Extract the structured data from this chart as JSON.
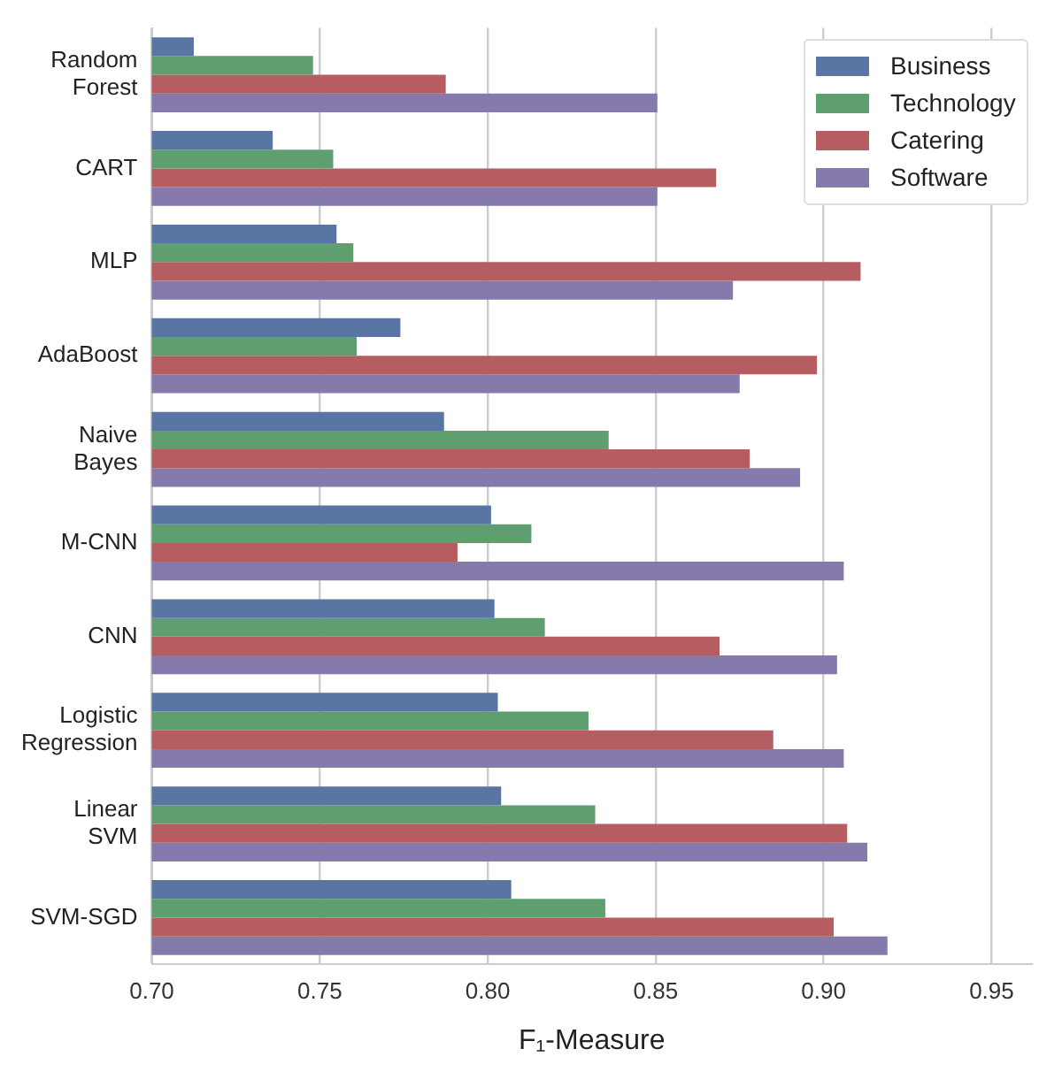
{
  "chart_data": {
    "type": "bar",
    "orientation": "horizontal",
    "xlabel": "F₁-Measure",
    "categories": [
      "Random Forest",
      "CART",
      "MLP",
      "AdaBoost",
      "Naive Bayes",
      "M-CNN",
      "CNN",
      "Logistic Regression",
      "Linear SVM",
      "SVM-SGD"
    ],
    "series": [
      {
        "name": "Business",
        "color": "#5875a4",
        "values": [
          0.7125,
          0.736,
          0.755,
          0.774,
          0.787,
          0.801,
          0.802,
          0.803,
          0.804,
          0.807
        ]
      },
      {
        "name": "Technology",
        "color": "#5f9e6e",
        "values": [
          0.748,
          0.754,
          0.76,
          0.761,
          0.836,
          0.813,
          0.817,
          0.83,
          0.832,
          0.835
        ]
      },
      {
        "name": "Catering",
        "color": "#b55d60",
        "values": [
          0.7875,
          0.868,
          0.911,
          0.898,
          0.878,
          0.791,
          0.869,
          0.885,
          0.907,
          0.903
        ]
      },
      {
        "name": "Software",
        "color": "#857aab",
        "values": [
          0.8505,
          0.8505,
          0.873,
          0.875,
          0.893,
          0.906,
          0.904,
          0.906,
          0.913,
          0.919
        ]
      }
    ],
    "xlim": [
      0.7,
      0.962
    ],
    "xticks": [
      {
        "value": 0.7,
        "label": "0.70"
      },
      0.75,
      {
        "value": 0.8,
        "label": "0.80"
      },
      0.85,
      {
        "value": 0.9,
        "label": "0.90"
      },
      0.95
    ],
    "grid": "x",
    "legend": "top right"
  }
}
